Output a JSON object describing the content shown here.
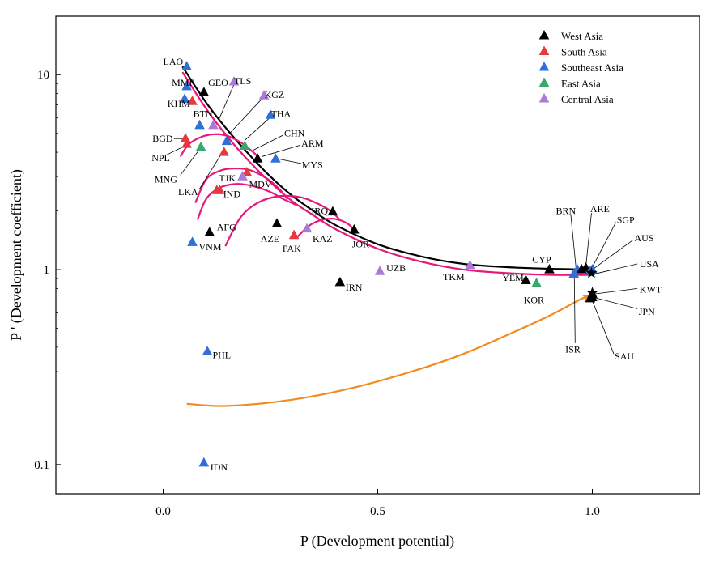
{
  "chart_data": {
    "type": "scatter",
    "xlabel": "P (Development potential)",
    "ylabel": "P ' (Development coefficient)",
    "xlim": [
      -0.25,
      1.25
    ],
    "ylim_log10": [
      -1.15,
      1.3
    ],
    "y_scale": "log",
    "x_ticks": [
      {
        "value": 0.0,
        "label": "0.0"
      },
      {
        "value": 0.5,
        "label": "0.5"
      },
      {
        "value": 1.0,
        "label": "1.0"
      }
    ],
    "y_ticks": [
      {
        "value": 0.1,
        "label": "0.1"
      },
      {
        "value": 1,
        "label": "1"
      },
      {
        "value": 10,
        "label": "10"
      }
    ],
    "legend": {
      "position": "top-right",
      "entries": [
        {
          "group": "West Asia",
          "label": "West Asia",
          "color": "#000000"
        },
        {
          "group": "South Asia",
          "label": "South Asia",
          "color": "#e8383d"
        },
        {
          "group": "Southeast Asia",
          "label": "Southeast Asia",
          "color": "#2e6fd8"
        },
        {
          "group": "East Asia",
          "label": "East Asia",
          "color": "#3aa76d"
        },
        {
          "group": "Central Asia",
          "label": "Central Asia",
          "color": "#a97bd6"
        }
      ]
    },
    "points": [
      {
        "label": "LAO",
        "group": "Southeast Asia",
        "x": 0.055,
        "y": 11.0,
        "lx": 0.0,
        "ly": 11.7
      },
      {
        "label": "MMR",
        "group": "Southeast Asia",
        "x": 0.055,
        "y": 8.7,
        "lx": 0.02,
        "ly": 9.1
      },
      {
        "label": "GEO",
        "group": "West Asia",
        "x": 0.095,
        "y": 8.1,
        "lx": 0.105,
        "ly": 9.1
      },
      {
        "label": "TLS",
        "group": "Central Asia",
        "x": 0.165,
        "y": 9.2,
        "lx": 0.165,
        "ly": 9.3
      },
      {
        "label": "KHM",
        "group": "Southeast Asia",
        "x": 0.05,
        "y": 7.5,
        "lx": 0.01,
        "ly": 7.1
      },
      {
        "label": "BTN",
        "group": "South Asia",
        "x": 0.068,
        "y": 7.3,
        "lx": 0.07,
        "ly": 6.3
      },
      {
        "label": "KGZ",
        "group": "Central Asia",
        "x": 0.235,
        "y": 7.8,
        "lx": 0.236,
        "ly": 7.9
      },
      {
        "label": "THA",
        "group": "Southeast Asia",
        "x": 0.25,
        "y": 6.2,
        "lx": 0.251,
        "ly": 6.3
      },
      {
        "label": "TLS",
        "group": "Central Asia",
        "x": 0.117,
        "y": 5.5
      },
      {
        "label": "",
        "group": "Southeast Asia",
        "x": 0.085,
        "y": 5.5
      },
      {
        "label": "CHN",
        "group": "East Asia",
        "x": 0.19,
        "y": 4.3,
        "lx": 0.282,
        "ly": 5.0
      },
      {
        "label": "BGD",
        "group": "South Asia",
        "x": 0.052,
        "y": 4.7,
        "lx": -0.025,
        "ly": 4.7
      },
      {
        "label": "NPL",
        "group": "South Asia",
        "x": 0.055,
        "y": 4.4,
        "lx": -0.027,
        "ly": 3.75
      },
      {
        "label": "MNG",
        "group": "East Asia",
        "x": 0.088,
        "y": 4.25,
        "lx": -0.02,
        "ly": 2.9
      },
      {
        "label": "",
        "group": "Southeast Asia",
        "x": 0.148,
        "y": 4.55
      },
      {
        "label": "ARM",
        "group": "West Asia",
        "x": 0.22,
        "y": 3.7,
        "lx": 0.322,
        "ly": 4.45
      },
      {
        "label": "MYS",
        "group": "Southeast Asia",
        "x": 0.262,
        "y": 3.7,
        "lx": 0.323,
        "ly": 3.45
      },
      {
        "label": "",
        "group": "South Asia",
        "x": 0.142,
        "y": 4.0
      },
      {
        "label": "LKA",
        "group": "South Asia",
        "x": 0.195,
        "y": 3.15,
        "lx": 0.035,
        "ly": 2.5
      },
      {
        "label": "MDV",
        "group": "Central Asia",
        "x": 0.185,
        "y": 3.0,
        "lx": 0.2,
        "ly": 2.75
      },
      {
        "label": "TJK",
        "group": "South Asia",
        "x": 0.132,
        "y": 2.55,
        "lx": 0.13,
        "ly": 2.95
      },
      {
        "label": "IND",
        "group": "South Asia",
        "x": 0.125,
        "y": 2.55,
        "lx": 0.14,
        "ly": 2.45
      },
      {
        "label": "IRQ",
        "group": "West Asia",
        "x": 0.395,
        "y": 1.98,
        "lx": 0.345,
        "ly": 2.0
      },
      {
        "label": "AFG",
        "group": "West Asia",
        "x": 0.108,
        "y": 1.55,
        "lx": 0.125,
        "ly": 1.65
      },
      {
        "label": "AZE",
        "group": "West Asia",
        "x": 0.265,
        "y": 1.72,
        "lx": 0.227,
        "ly": 1.44
      },
      {
        "label": "VNM",
        "group": "Southeast Asia",
        "x": 0.068,
        "y": 1.38,
        "lx": 0.083,
        "ly": 1.31
      },
      {
        "label": "PAK",
        "group": "South Asia",
        "x": 0.305,
        "y": 1.5,
        "lx": 0.278,
        "ly": 1.28
      },
      {
        "label": "KAZ",
        "group": "Central Asia",
        "x": 0.335,
        "y": 1.62,
        "lx": 0.348,
        "ly": 1.44
      },
      {
        "label": "JOR",
        "group": "West Asia",
        "x": 0.445,
        "y": 1.6,
        "lx": 0.44,
        "ly": 1.35
      },
      {
        "label": "UZB",
        "group": "Central Asia",
        "x": 0.505,
        "y": 0.98,
        "lx": 0.52,
        "ly": 1.02
      },
      {
        "label": "TKM",
        "group": "Central Asia",
        "x": 0.715,
        "y": 1.05,
        "lx": 0.652,
        "ly": 0.92
      },
      {
        "label": "IRN",
        "group": "West Asia",
        "x": 0.412,
        "y": 0.86,
        "lx": 0.425,
        "ly": 0.81
      },
      {
        "label": "CYP",
        "group": "West Asia",
        "x": 0.9,
        "y": 1.0,
        "lx": 0.86,
        "ly": 1.13
      },
      {
        "label": "YEM",
        "group": "West Asia",
        "x": 0.845,
        "y": 0.88,
        "lx": 0.79,
        "ly": 0.91
      },
      {
        "label": "KOR",
        "group": "East Asia",
        "x": 0.87,
        "y": 0.85,
        "lx": 0.84,
        "ly": 0.7
      },
      {
        "label": "BRN",
        "group": "Southeast Asia",
        "x": 0.965,
        "y": 1.0,
        "lx": 0.915,
        "ly": 2.0
      },
      {
        "label": "ARE",
        "group": "West Asia",
        "x": 0.985,
        "y": 1.02,
        "lx": 0.995,
        "ly": 2.05
      },
      {
        "label": "SGP",
        "group": "Southeast Asia",
        "x": 1.0,
        "y": 1.0,
        "lx": 1.057,
        "ly": 1.8
      },
      {
        "label": "AUS",
        "group": "Southeast Asia",
        "x": 0.995,
        "y": 0.98,
        "lx": 1.098,
        "ly": 1.45
      },
      {
        "label": "USA",
        "group": "West Asia",
        "x": 0.975,
        "y": 1.0,
        "lx": 1.11,
        "ly": 1.07
      },
      {
        "label": "ISR",
        "group": "Southeast Asia",
        "x": 0.957,
        "y": 0.95,
        "lx": 0.937,
        "ly": 0.39
      },
      {
        "label": "KWT",
        "group": "West Asia",
        "x": 1.0,
        "y": 0.75,
        "lx": 1.11,
        "ly": 0.79
      },
      {
        "label": "JPN",
        "group": "West Asia",
        "x": 1.0,
        "y": 0.72,
        "lx": 1.108,
        "ly": 0.61
      },
      {
        "label": "SAU",
        "group": "West Asia",
        "x": 0.995,
        "y": 0.71,
        "lx": 1.052,
        "ly": 0.36
      },
      {
        "label": "PHL",
        "group": "Southeast Asia",
        "x": 0.103,
        "y": 0.38,
        "lx": 0.115,
        "ly": 0.365
      },
      {
        "label": "IDN",
        "group": "Southeast Asia",
        "x": 0.095,
        "y": 0.102,
        "lx": 0.11,
        "ly": 0.097
      }
    ],
    "stars": [
      {
        "x": 0.998,
        "y": 0.96
      },
      {
        "x": 1.0,
        "y": 0.76
      }
    ],
    "curves": [
      {
        "name": "black-trend",
        "color": "#000000",
        "points": [
          [
            0.045,
            11.0
          ],
          [
            0.1,
            7.2
          ],
          [
            0.15,
            5.2
          ],
          [
            0.2,
            3.9
          ],
          [
            0.25,
            3.0
          ],
          [
            0.3,
            2.4
          ],
          [
            0.35,
            2.0
          ],
          [
            0.4,
            1.7
          ],
          [
            0.5,
            1.35
          ],
          [
            0.6,
            1.17
          ],
          [
            0.7,
            1.07
          ],
          [
            0.8,
            1.03
          ],
          [
            0.9,
            1.01
          ],
          [
            1.0,
            1.0
          ]
        ]
      },
      {
        "name": "magenta-main",
        "color": "#e8157a",
        "points": [
          [
            0.045,
            10.3
          ],
          [
            0.1,
            6.7
          ],
          [
            0.15,
            4.8
          ],
          [
            0.2,
            3.6
          ],
          [
            0.25,
            2.8
          ],
          [
            0.3,
            2.25
          ],
          [
            0.35,
            1.9
          ],
          [
            0.4,
            1.62
          ],
          [
            0.5,
            1.28
          ],
          [
            0.6,
            1.1
          ],
          [
            0.7,
            1.0
          ],
          [
            0.8,
            0.96
          ],
          [
            0.9,
            0.94
          ],
          [
            1.0,
            0.94
          ]
        ]
      },
      {
        "name": "magenta-arc-1",
        "color": "#e8157a",
        "points": [
          [
            0.04,
            3.8
          ],
          [
            0.06,
            4.4
          ],
          [
            0.09,
            4.8
          ],
          [
            0.12,
            4.95
          ],
          [
            0.15,
            4.85
          ],
          [
            0.18,
            4.5
          ],
          [
            0.21,
            4.0
          ],
          [
            0.225,
            3.7
          ]
        ]
      },
      {
        "name": "magenta-arc-2",
        "color": "#e8157a",
        "points": [
          [
            0.075,
            2.2
          ],
          [
            0.1,
            2.9
          ],
          [
            0.13,
            3.2
          ],
          [
            0.16,
            3.3
          ],
          [
            0.2,
            3.25
          ],
          [
            0.24,
            2.95
          ],
          [
            0.27,
            2.6
          ],
          [
            0.29,
            2.3
          ]
        ]
      },
      {
        "name": "magenta-arc-3",
        "color": "#e8157a",
        "points": [
          [
            0.08,
            1.8
          ],
          [
            0.1,
            2.3
          ],
          [
            0.13,
            2.62
          ],
          [
            0.17,
            2.75
          ],
          [
            0.21,
            2.68
          ],
          [
            0.25,
            2.5
          ],
          [
            0.28,
            2.3
          ],
          [
            0.31,
            2.15
          ]
        ]
      },
      {
        "name": "magenta-arc-4",
        "color": "#e8157a",
        "points": [
          [
            0.145,
            1.32
          ],
          [
            0.18,
            1.85
          ],
          [
            0.22,
            2.2
          ],
          [
            0.27,
            2.38
          ],
          [
            0.32,
            2.35
          ],
          [
            0.36,
            2.18
          ],
          [
            0.39,
            2.0
          ],
          [
            0.41,
            1.82
          ]
        ]
      },
      {
        "name": "magenta-arc-5",
        "color": "#e8157a",
        "points": [
          [
            0.31,
            1.45
          ],
          [
            0.34,
            1.68
          ],
          [
            0.37,
            1.8
          ],
          [
            0.4,
            1.82
          ],
          [
            0.43,
            1.72
          ],
          [
            0.45,
            1.55
          ]
        ]
      },
      {
        "name": "orange-arrow",
        "color": "#f28a1d",
        "arrow": true,
        "points": [
          [
            0.055,
            0.205
          ],
          [
            0.15,
            0.2
          ],
          [
            0.3,
            0.215
          ],
          [
            0.45,
            0.25
          ],
          [
            0.6,
            0.31
          ],
          [
            0.7,
            0.37
          ],
          [
            0.8,
            0.46
          ],
          [
            0.9,
            0.58
          ],
          [
            0.97,
            0.7
          ],
          [
            0.99,
            0.73
          ]
        ]
      }
    ],
    "leaders": [
      {
        "label": "TLS",
        "from": [
          0.165,
          8.9
        ],
        "to": [
          0.13,
          5.9
        ]
      },
      {
        "label": "KGZ",
        "from": [
          0.232,
          7.6
        ],
        "to": [
          0.155,
          5.0
        ]
      },
      {
        "label": "THA",
        "from": [
          0.248,
          6.0
        ],
        "to": [
          0.19,
          4.6
        ]
      },
      {
        "label": "CHN",
        "from": [
          0.28,
          4.9
        ],
        "to": [
          0.21,
          4.1
        ]
      },
      {
        "label": "ARM",
        "from": [
          0.32,
          4.35
        ],
        "to": [
          0.23,
          3.8
        ]
      },
      {
        "label": "MYS",
        "from": [
          0.322,
          3.5
        ],
        "to": [
          0.268,
          3.7
        ]
      },
      {
        "label": "BGD",
        "from": [
          0.025,
          4.7
        ],
        "to": [
          0.045,
          4.7
        ]
      },
      {
        "label": "NPL",
        "from": [
          0.005,
          3.85
        ],
        "to": [
          0.05,
          4.3
        ]
      },
      {
        "label": "MNG",
        "from": [
          0.04,
          3.05
        ],
        "to": [
          0.085,
          4.15
        ]
      },
      {
        "label": "LKA",
        "from": [
          0.085,
          2.6
        ],
        "to": [
          0.135,
          3.9
        ]
      },
      {
        "label": "BRN",
        "from": [
          0.95,
          1.9
        ],
        "to": [
          0.962,
          1.02
        ]
      },
      {
        "label": "ARE",
        "from": [
          0.998,
          1.95
        ],
        "to": [
          0.985,
          1.04
        ]
      },
      {
        "label": "SGP",
        "from": [
          1.055,
          1.75
        ],
        "to": [
          1.0,
          1.03
        ]
      },
      {
        "label": "AUS",
        "from": [
          1.095,
          1.42
        ],
        "to": [
          1.0,
          1.0
        ]
      },
      {
        "label": "USA",
        "from": [
          1.105,
          1.07
        ],
        "to": [
          1.005,
          0.95
        ]
      },
      {
        "label": "KWT",
        "from": [
          1.105,
          0.8
        ],
        "to": [
          1.005,
          0.75
        ]
      },
      {
        "label": "JPN",
        "from": [
          1.105,
          0.63
        ],
        "to": [
          1.003,
          0.72
        ]
      },
      {
        "label": "SAU",
        "from": [
          1.05,
          0.37
        ],
        "to": [
          0.998,
          0.71
        ]
      },
      {
        "label": "ISR",
        "from": [
          0.96,
          0.42
        ],
        "to": [
          0.958,
          0.93
        ]
      }
    ]
  }
}
